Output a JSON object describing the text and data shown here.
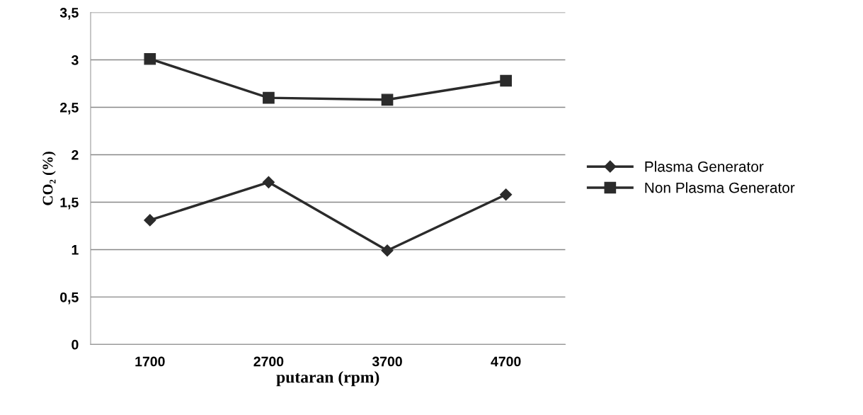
{
  "chart_data": {
    "type": "line",
    "xlabel": "putaran (rpm)",
    "ylabel": "CO₂ (%)",
    "categories": [
      "1700",
      "2700",
      "3700",
      "4700"
    ],
    "series": [
      {
        "name": "Plasma Generator",
        "color": "#2b2b2b",
        "marker": "diamond",
        "values": [
          1.31,
          1.71,
          0.99,
          1.58
        ]
      },
      {
        "name": "Non Plasma Generator",
        "color": "#2b2b2b",
        "marker": "square",
        "values": [
          3.01,
          2.6,
          2.58,
          2.78
        ]
      }
    ],
    "ylim": [
      0,
      3.5
    ],
    "yticks": [
      0,
      {
        "value": 0.5,
        "label": "0,5"
      },
      1,
      {
        "value": 1.5,
        "label": "1,5"
      },
      2,
      {
        "value": 2.5,
        "label": "2,5"
      },
      3,
      {
        "value": 3.5,
        "label": "3,5"
      }
    ],
    "grid": "y",
    "legend": "right",
    "line_style": "solid"
  }
}
